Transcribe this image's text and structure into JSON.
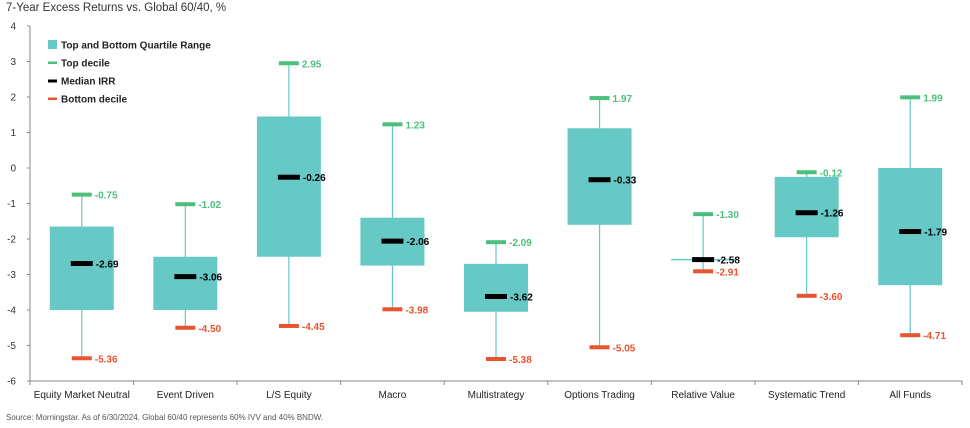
{
  "title": "7-Year Excess Returns vs. Global 60/40, %",
  "source": "Source: Morningstar. As of 6/30/2024. Global 60/40 represents 60% IVV and 40% BNDW.",
  "colors": {
    "box": "#66c9c5",
    "whisker": "#66c9c5",
    "top": "#4cbf7b",
    "median": "#000000",
    "bottom": "#e8542f",
    "axis": "#8a8a8a",
    "topLabel": "#4cbf7b",
    "bottomLabel": "#e8542f",
    "medianLabel": "#000000"
  },
  "chart_data": {
    "type": "box",
    "title": "7-Year Excess Returns vs. Global 60/40, %",
    "ylim": [
      -6,
      4
    ],
    "yticks": [
      "4",
      "3",
      "2",
      "1",
      "0",
      "-1",
      "-2",
      "-3",
      "-4",
      "-5",
      "-6"
    ],
    "legend": [
      {
        "key": "box",
        "label": "Top and Bottom Quartile Range"
      },
      {
        "key": "top",
        "label": "Top decile"
      },
      {
        "key": "median",
        "label": "Median IRR"
      },
      {
        "key": "bottom",
        "label": "Bottom decile"
      }
    ],
    "categories": [
      "Equity Market Neutral",
      "Event Driven",
      "L/S Equity",
      "Macro",
      "Multistrategy",
      "Options Trading",
      "Relative Value",
      "Systematic Trend",
      "All Funds"
    ],
    "top_decile": [
      -0.75,
      -1.02,
      2.95,
      1.23,
      -2.09,
      1.97,
      -1.3,
      -0.12,
      1.99
    ],
    "top_quartile": [
      -1.65,
      -2.5,
      1.45,
      -1.4,
      -2.7,
      1.12,
      -2.58,
      -0.25,
      0.0
    ],
    "median": [
      -2.69,
      -3.06,
      -0.26,
      -2.06,
      -3.62,
      -0.33,
      -2.58,
      -1.26,
      -1.79
    ],
    "bottom_quartile": [
      -4.0,
      -4.0,
      -2.5,
      -2.75,
      -4.05,
      -1.6,
      -2.58,
      -1.95,
      -3.3
    ],
    "bottom_decile": [
      -5.36,
      -4.5,
      -4.45,
      -3.98,
      -5.38,
      -5.05,
      -2.91,
      -3.6,
      -4.71
    ],
    "top_labels": [
      "-0.75",
      "-1.02",
      "2.95",
      "1.23",
      "-2.09",
      "1.97",
      "-1.30",
      "-0.12",
      "1.99"
    ],
    "median_labels": [
      "-2.69",
      "-3.06",
      "-0.26",
      "-2.06",
      "-3.62",
      "-0.33",
      "-2.58",
      "-1.26",
      "-1.79"
    ],
    "bottom_labels": [
      "-5.36",
      "-4.50",
      "-4.45",
      "-3.98",
      "-5.38",
      "-5.05",
      "-2.91",
      "-3.60",
      "-4.71"
    ]
  }
}
